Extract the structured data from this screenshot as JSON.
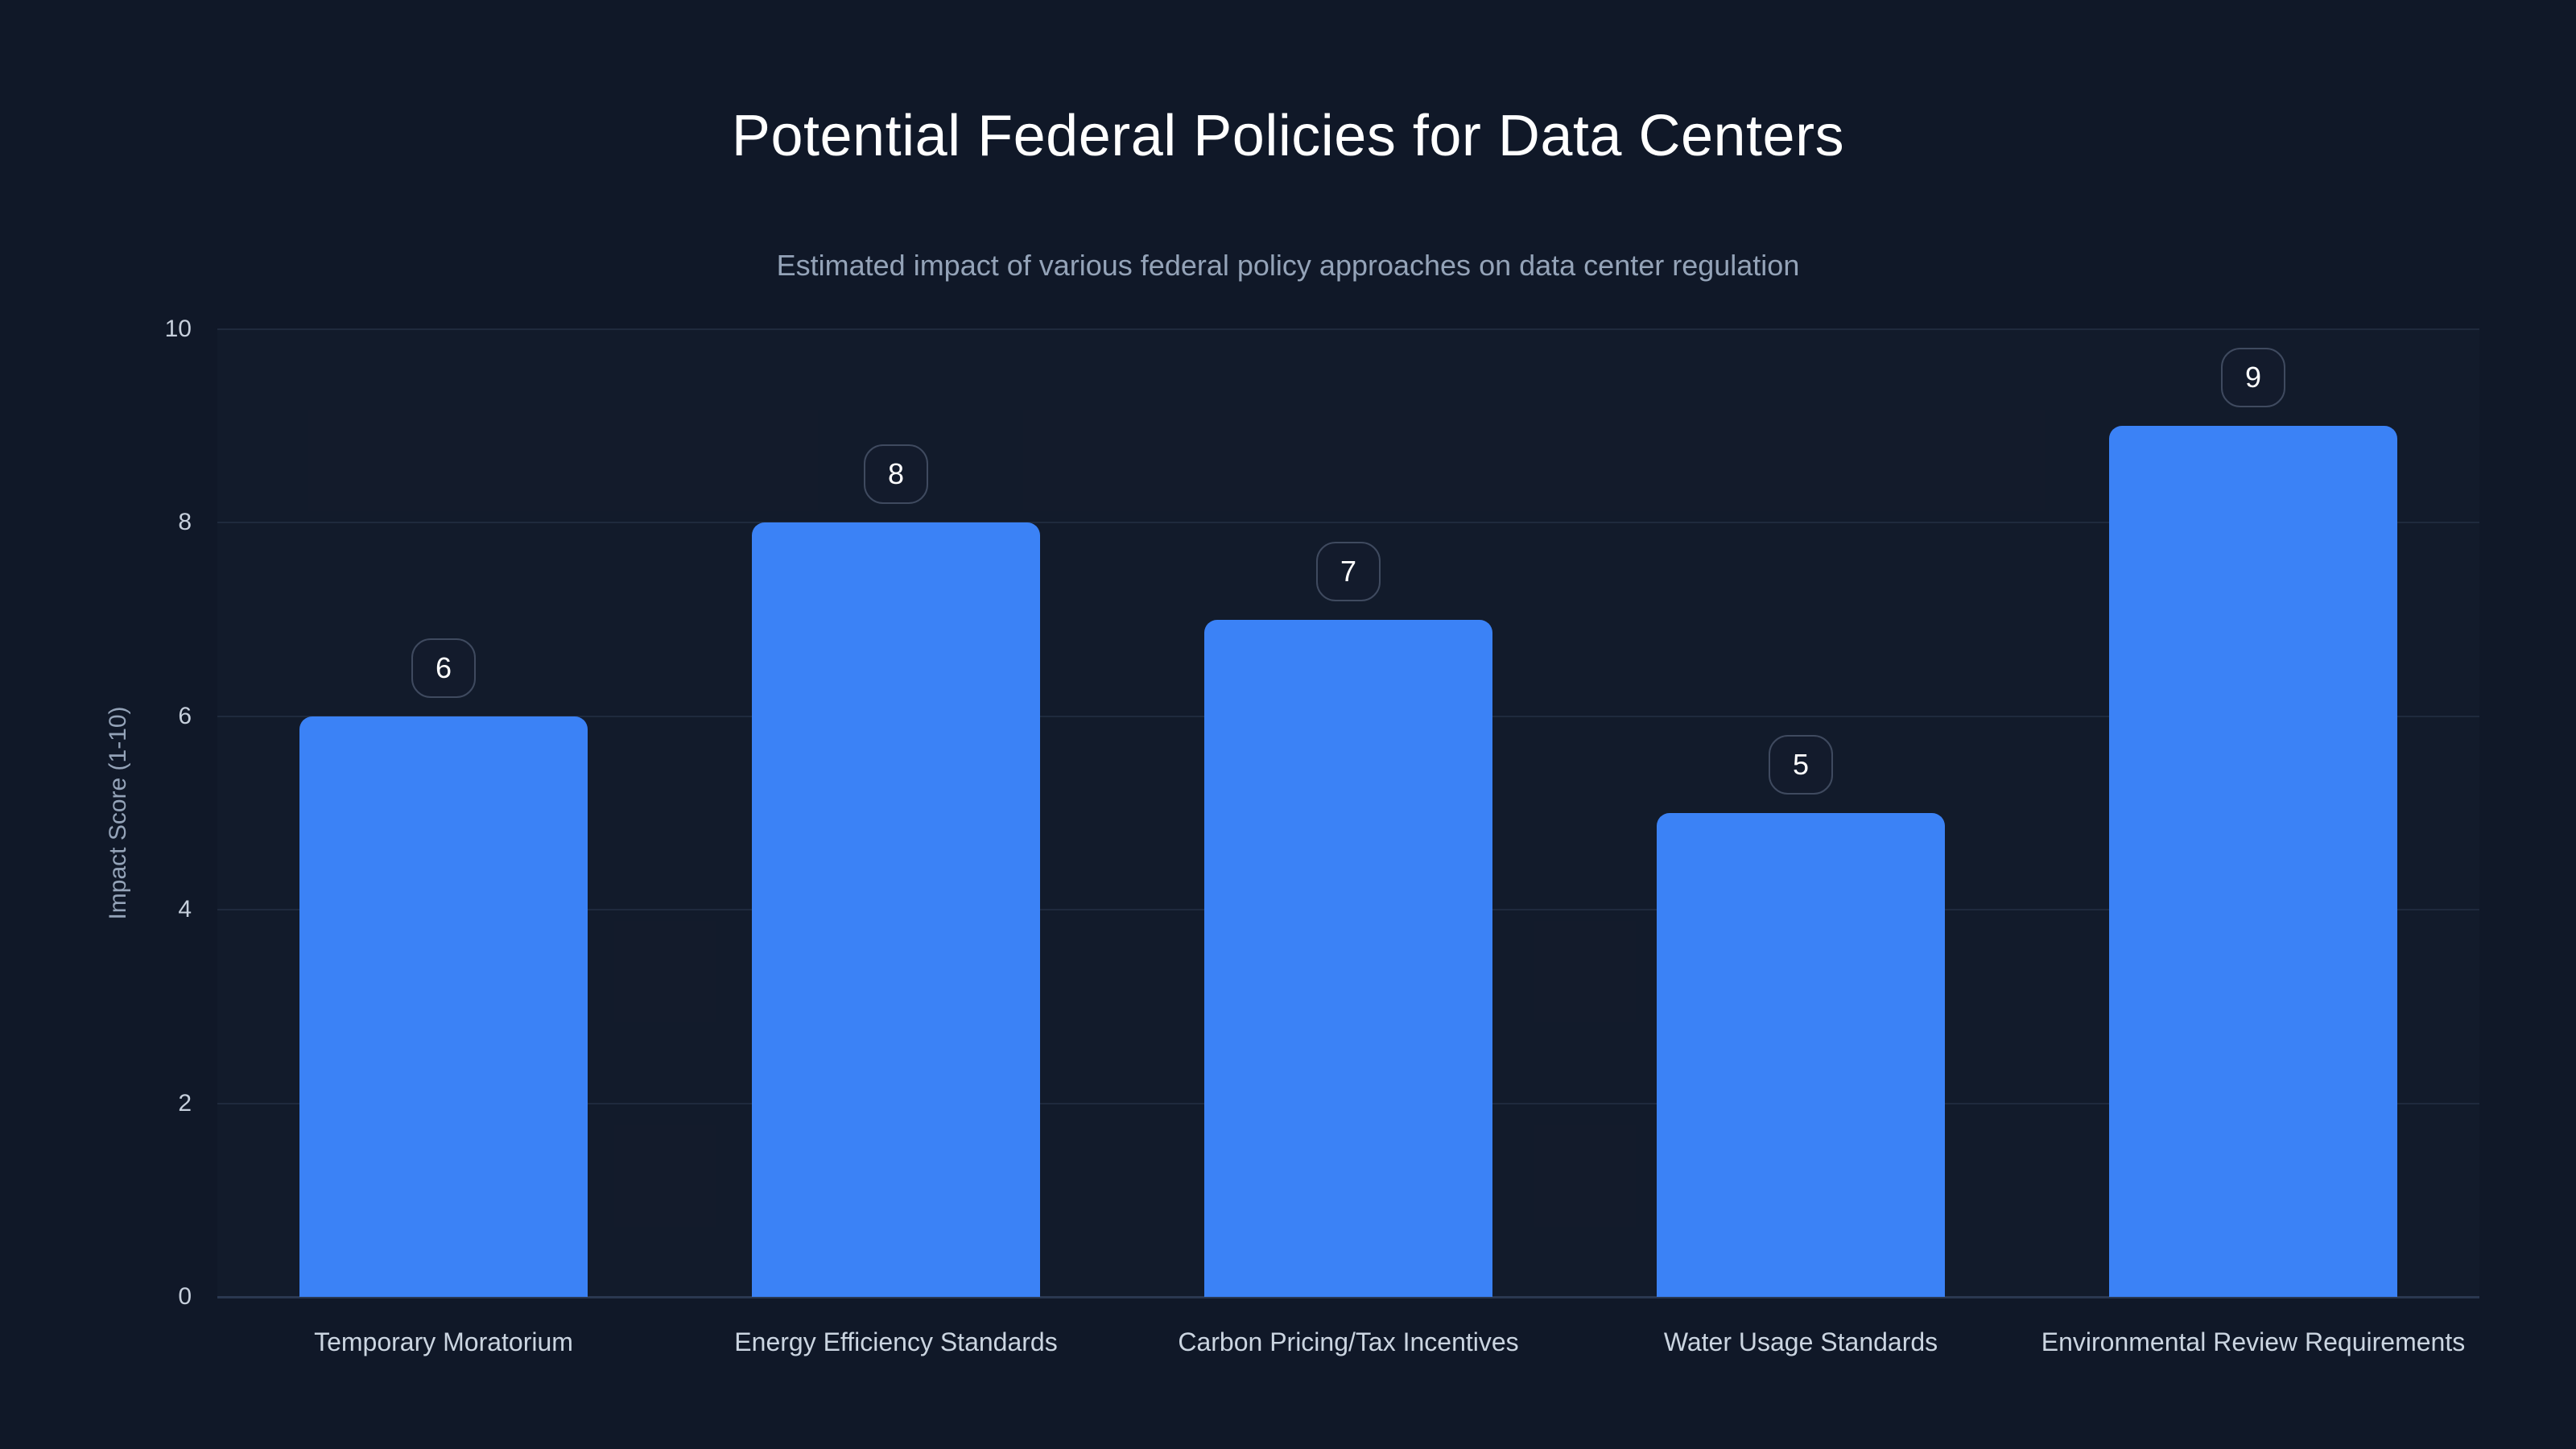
{
  "page": {
    "background": "#101828"
  },
  "chart_data": {
    "type": "bar",
    "title": "Potential Federal Policies for Data Centers",
    "subtitle": "Estimated impact of various federal policy approaches on data center regulation",
    "categories": [
      "Temporary Moratorium",
      "Energy Efficiency Standards",
      "Carbon Pricing/Tax Incentives",
      "Water Usage Standards",
      "Environmental Review Requirements"
    ],
    "values": [
      6,
      8,
      7,
      5,
      9
    ],
    "value_labels": [
      "6",
      "8",
      "7",
      "5",
      "9"
    ],
    "xlabel": "",
    "ylabel": "Impact Score (1-10)",
    "ylim": [
      0,
      10
    ],
    "yticks": [
      0,
      2,
      4,
      6,
      8,
      10
    ],
    "grid": true,
    "legend": false,
    "layout_hints": {
      "legend_position": "none",
      "value_labels_style": "rounded-badge-above-bar"
    },
    "colors": {
      "background": "#101828",
      "bar": "#3b82f6",
      "title_text": "#ffffff",
      "subtitle_text": "#94a3b8",
      "axis_text": "#cbd5e1",
      "tick_text": "#c6cfdc",
      "gridline": "#1f2a3d",
      "axis_line": "#2a3850",
      "badge_border": "#3f4a5f",
      "badge_text": "#ffffff"
    }
  }
}
